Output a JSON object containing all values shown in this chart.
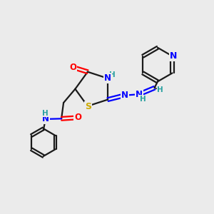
{
  "bg_color": "#ebebeb",
  "bond_color": "#1a1a1a",
  "atom_colors": {
    "N": "#0000ff",
    "O": "#ff0000",
    "S": "#ccaa00",
    "H": "#2aa0a0",
    "C": "#1a1a1a"
  },
  "figsize": [
    3.0,
    3.0
  ],
  "dpi": 100
}
